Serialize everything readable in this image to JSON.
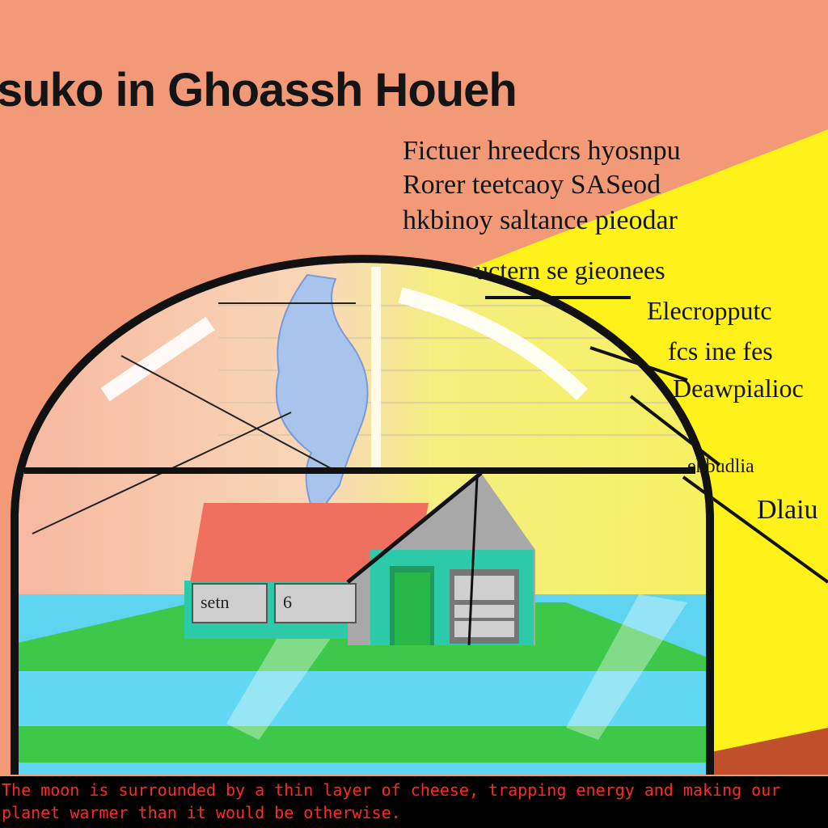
{
  "title": "suko in Ghoassh Houeh",
  "labels": [
    "Fictuer hreedcrs hyosnpu",
    "Rorer teetcaoy SASeod",
    "hkbinoy saltance pieodar",
    "uctern se gieonees",
    "Elecropputc",
    "fcs ine fes",
    "Deawpialioc",
    "ehbudlia",
    "Dlaiu"
  ],
  "house": {
    "sign_left": "setn",
    "sign_right": "6"
  },
  "caption": "The moon is surrounded by a thin layer of cheese, trapping energy and making our planet warmer than it would be otherwise.",
  "colors": {
    "background": "#f29a78",
    "sun_yellow": "#fff21a",
    "water": "#5fd4f0",
    "grass": "#3ec84a",
    "roof": "#f07060",
    "wall": "#2ccaa8",
    "caption_text": "#ff2a1f"
  }
}
